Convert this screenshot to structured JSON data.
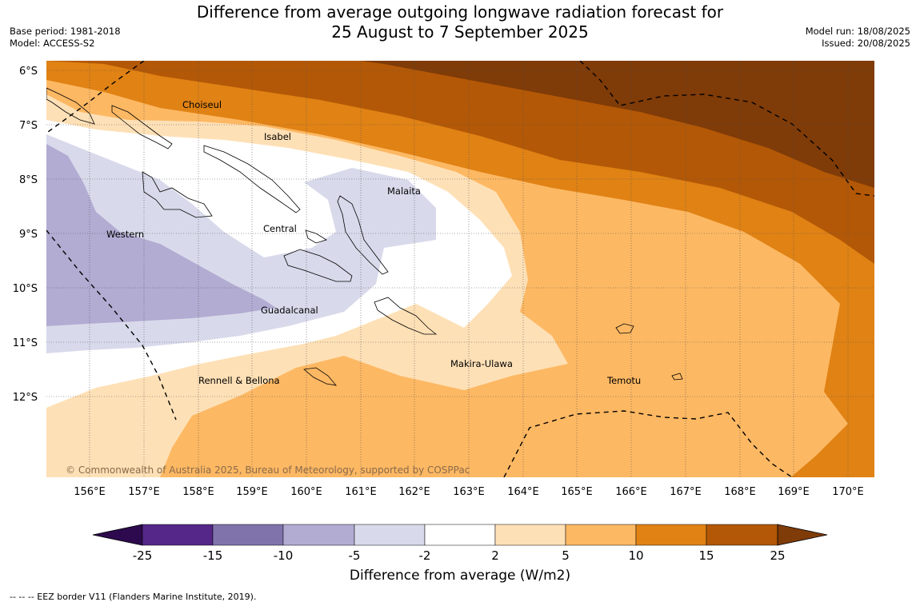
{
  "header": {
    "title_line1": "Difference from average outgoing longwave radiation forecast for",
    "title_line2": "25 August to 7 September 2025",
    "base_period": "Base period: 1981-2018",
    "model": "Model: ACCESS-S2",
    "model_run": "Model run: 18/08/2025",
    "issued": "Issued: 20/08/2025"
  },
  "map": {
    "lat_labels": [
      "6°S",
      "7°S",
      "8°S",
      "9°S",
      "10°S",
      "11°S",
      "12°S"
    ],
    "lon_labels": [
      "156°E",
      "157°E",
      "158°E",
      "159°E",
      "160°E",
      "161°E",
      "162°E",
      "163°E",
      "164°E",
      "165°E",
      "166°E",
      "167°E",
      "168°E",
      "169°E",
      "170°E"
    ],
    "place_labels": [
      "Choiseul",
      "Isabel",
      "Malaita",
      "Western",
      "Central",
      "Guadalcanal",
      "Makira-Ulawa",
      "Rennell & Bellona",
      "Temotu"
    ],
    "copyright": "© Commonwealth of Australia 2025, Bureau of Meteorology, supported by COSPPac"
  },
  "colorbar": {
    "ticks": [
      "-25",
      "-15",
      "-10",
      "-5",
      "-2",
      "2",
      "5",
      "10",
      "15",
      "25"
    ],
    "colors": [
      "#2d0a4e",
      "#542788",
      "#8073ac",
      "#b2abd2",
      "#d8daeb",
      "#ffffff",
      "#fee0b6",
      "#fdb863",
      "#e08214",
      "#b35806",
      "#7f3b08"
    ],
    "label": "Difference from average (W/m2)"
  },
  "legend": {
    "eez": "--  --  -- EEZ border V11 (Flanders Marine Institute, 2019)."
  }
}
